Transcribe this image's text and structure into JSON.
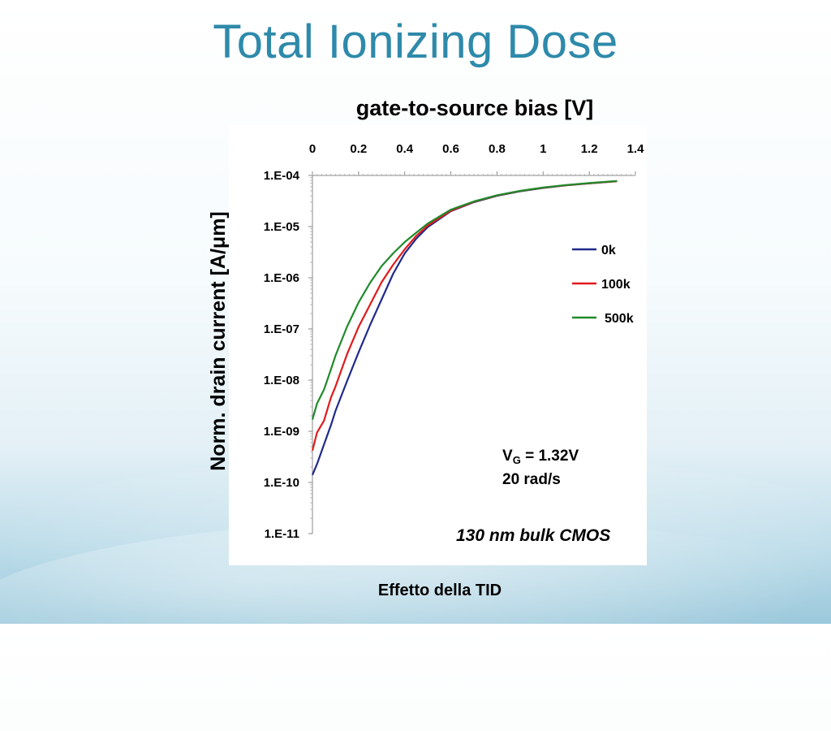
{
  "slide": {
    "title": "Total Ionizing Dose",
    "caption": "Effetto della TID"
  },
  "annotations": {
    "vg_main": "V",
    "vg_sub": "G",
    "vg_rest": " = 1.32V",
    "rate": "20 rad/s",
    "technology": "130 nm bulk CMOS"
  },
  "chart_data": {
    "type": "line",
    "title": "",
    "xlabel": "gate-to-source bias [V]",
    "ylabel": "Norm. drain current [A/μm]",
    "x_axis_position": "top",
    "y_scale": "log",
    "xlim": [
      0,
      1.4
    ],
    "ylim": [
      1e-11,
      0.0001
    ],
    "x_ticks": [
      0,
      0.2,
      0.4,
      0.6,
      0.8,
      1,
      1.2,
      1.4
    ],
    "x_tick_labels": [
      "0",
      "0.2",
      "0.4",
      "0.6",
      "0.8",
      "1",
      "1.2",
      "1.4"
    ],
    "y_ticks": [
      0.0001,
      1e-05,
      1e-06,
      1e-07,
      1e-08,
      1e-09,
      1e-10,
      1e-11
    ],
    "y_tick_labels": [
      "1.E-04",
      "1.E-05",
      "1.E-06",
      "1.E-07",
      "1.E-08",
      "1.E-09",
      "1.E-10",
      "1.E-11"
    ],
    "grid": false,
    "legend_position": "right",
    "series": [
      {
        "name": "0k",
        "color": "#1f2a8c",
        "x": [
          0.0,
          0.02,
          0.05,
          0.08,
          0.1,
          0.15,
          0.2,
          0.25,
          0.3,
          0.35,
          0.4,
          0.45,
          0.5,
          0.6,
          0.7,
          0.8,
          0.9,
          1.0,
          1.1,
          1.2,
          1.32
        ],
        "y": [
          1.4e-10,
          2.3e-10,
          5.5e-10,
          1.3e-09,
          2.5e-09,
          9.5e-09,
          3.5e-08,
          1.2e-07,
          3.8e-07,
          1.2e-06,
          3e-06,
          5.8e-06,
          9.8e-06,
          2e-05,
          3e-05,
          4e-05,
          4.9e-05,
          5.7e-05,
          6.4e-05,
          7e-05,
          7.7e-05
        ]
      },
      {
        "name": "100k",
        "color": "#e01b1b",
        "x": [
          0.0,
          0.02,
          0.05,
          0.08,
          0.1,
          0.15,
          0.2,
          0.25,
          0.3,
          0.35,
          0.4,
          0.45,
          0.5,
          0.6,
          0.7,
          0.8,
          0.9,
          1.0,
          1.1,
          1.2,
          1.32
        ],
        "y": [
          4.2e-10,
          9.5e-10,
          1.6e-09,
          4.5e-09,
          7.5e-09,
          3.2e-08,
          1.1e-07,
          3e-07,
          8.2e-07,
          1.8e-06,
          3.6e-06,
          6.6e-06,
          1.05e-05,
          2.05e-05,
          3.05e-05,
          4.05e-05,
          4.95e-05,
          5.75e-05,
          6.45e-05,
          7.05e-05,
          7.75e-05
        ]
      },
      {
        "name": "500k",
        "color": "#1f8a2a",
        "x": [
          0.0,
          0.02,
          0.05,
          0.08,
          0.1,
          0.15,
          0.2,
          0.25,
          0.3,
          0.35,
          0.4,
          0.45,
          0.5,
          0.6,
          0.7,
          0.8,
          0.9,
          1.0,
          1.1,
          1.2,
          1.32
        ],
        "y": [
          1.7e-09,
          3.5e-09,
          6.5e-09,
          1.6e-08,
          3e-08,
          1.1e-07,
          3.3e-07,
          8e-07,
          1.7e-06,
          3e-06,
          5e-06,
          7.6e-06,
          1.15e-05,
          2.15e-05,
          3.1e-05,
          4.1e-05,
          5e-05,
          5.8e-05,
          6.5e-05,
          7.1e-05,
          7.8e-05
        ]
      }
    ]
  }
}
